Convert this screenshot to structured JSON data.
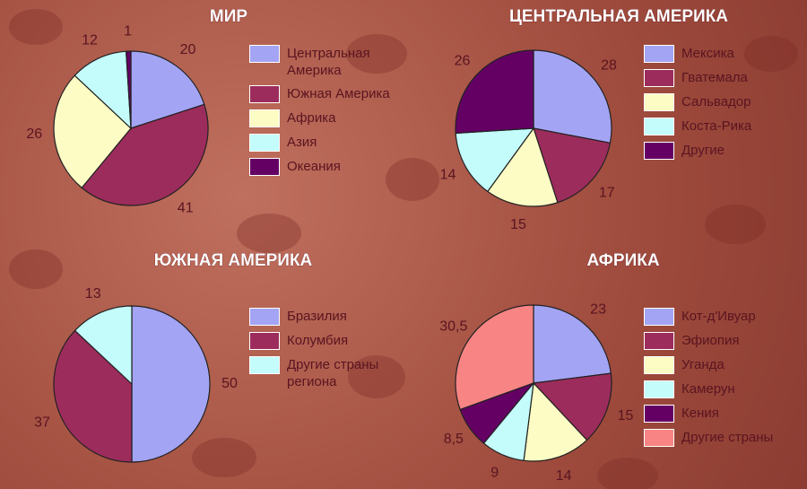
{
  "chart_data": [
    {
      "type": "pie",
      "title": "МИР",
      "categories": [
        "Центральная Америка",
        "Южная Америка",
        "Африка",
        "Азия",
        "Океания"
      ],
      "values": [
        20,
        41,
        26,
        12,
        1
      ],
      "colors": [
        "#a4a4f4",
        "#9c2c5c",
        "#fcfcc4",
        "#c4fcfc",
        "#640064"
      ]
    },
    {
      "type": "pie",
      "title": "ЦЕНТРАЛЬНАЯ АМЕРИКА",
      "categories": [
        "Мексика",
        "Гватемала",
        "Сальвадор",
        "Коста-Рика",
        "Другие"
      ],
      "values": [
        28,
        17,
        15,
        14,
        26
      ],
      "colors": [
        "#a4a4f4",
        "#9c2c5c",
        "#fcfcc4",
        "#c4fcfc",
        "#640064"
      ]
    },
    {
      "type": "pie",
      "title": "ЮЖНАЯ АМЕРИКА",
      "categories": [
        "Бразилия",
        "Колумбия",
        "Другие страны региона"
      ],
      "values": [
        50,
        37,
        13
      ],
      "colors": [
        "#a4a4f4",
        "#9c2c5c",
        "#c4fcfc"
      ]
    },
    {
      "type": "pie",
      "title": "АФРИКА",
      "categories": [
        "Кот-д'Ивуар",
        "Эфиопия",
        "Уганда",
        "Камерун",
        "Кения",
        "Другие страны"
      ],
      "values": [
        23,
        15,
        14,
        9,
        8.5,
        30.5
      ],
      "value_labels": [
        "23",
        "15",
        "14",
        "9",
        "8,5",
        "30,5"
      ],
      "colors": [
        "#a4a4f4",
        "#9c2c5c",
        "#fcfcc4",
        "#c4fcfc",
        "#640064",
        "#f88484"
      ]
    }
  ]
}
